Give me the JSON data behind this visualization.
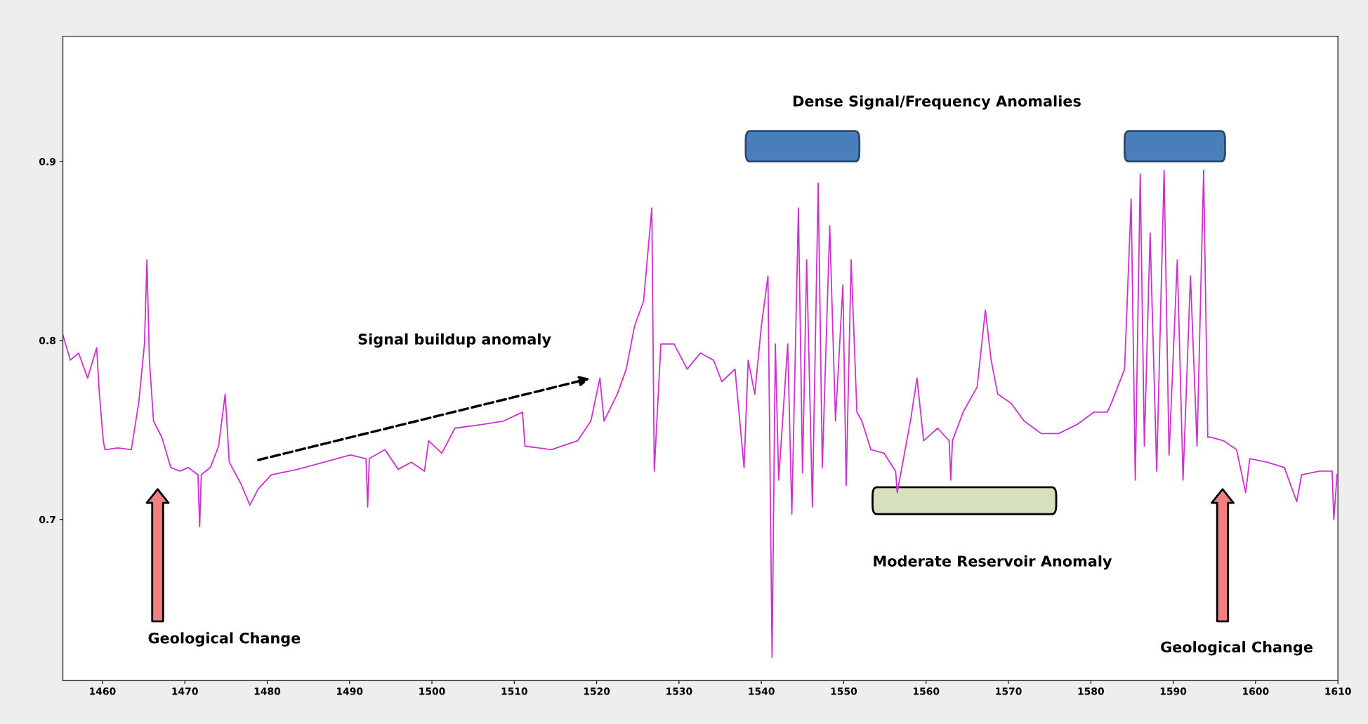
{
  "chart_data": {
    "type": "line",
    "annotations": [
      "Dense Signal/Frequency Anomalies",
      "Signal buildup anomaly",
      "Moderate Reservoir Anomaly",
      "Geological Change",
      "Geological Change"
    ],
    "xlim": [
      1455.2,
      1610
    ],
    "xticks": [
      1460,
      1470,
      1480,
      1490,
      1500,
      1510,
      1520,
      1530,
      1540,
      1550,
      1560,
      1570,
      1580,
      1590,
      1600,
      1610
    ],
    "ylim": [
      0.61,
      0.97
    ],
    "yticks": [
      0.7,
      0.8,
      0.9
    ],
    "grid": false,
    "line_style": "solid",
    "marker": "none",
    "series": [
      {
        "color": "#cc33cc",
        "x": [
          1455.2,
          1456.1,
          1457.1,
          1458.2,
          1459.3,
          1459.6,
          1460.1,
          1460.3,
          1461.9,
          1463.5,
          1464.4,
          1465.1,
          1465.4,
          1465.7,
          1466.2,
          1467.2,
          1468.3,
          1469.4,
          1470.4,
          1471.6,
          1471.8,
          1472.0,
          1473.1,
          1474.1,
          1474.9,
          1475.4,
          1476.8,
          1477.9,
          1478.9,
          1480.5,
          1483.7,
          1486.9,
          1490.1,
          1492.0,
          1492.2,
          1492.4,
          1494.3,
          1495.9,
          1497.5,
          1499.1,
          1499.6,
          1501.2,
          1502.8,
          1506.0,
          1508.7,
          1511.0,
          1511.3,
          1514.5,
          1517.7,
          1519.3,
          1520.4,
          1520.9,
          1522.5,
          1523.6,
          1524.6,
          1525.7,
          1526.7,
          1527.0,
          1527.8,
          1529.4,
          1531.0,
          1532.6,
          1534.2,
          1535.2,
          1536.8,
          1537.9,
          1538.4,
          1539.2,
          1540.0,
          1540.8,
          1541.3,
          1541.7,
          1542.1,
          1543.2,
          1543.7,
          1544.5,
          1545.0,
          1545.5,
          1546.2,
          1546.9,
          1547.4,
          1548.3,
          1549.0,
          1549.9,
          1550.3,
          1550.9,
          1551.6,
          1552.2,
          1553.3,
          1554.9,
          1556.3,
          1556.5,
          1558.1,
          1558.9,
          1559.7,
          1561.4,
          1562.8,
          1563.0,
          1563.2,
          1564.5,
          1566.2,
          1567.2,
          1567.9,
          1568.7,
          1570.3,
          1571.9,
          1574.0,
          1576.1,
          1578.3,
          1580.4,
          1582.0,
          1582.5,
          1584.1,
          1584.9,
          1585.4,
          1586.0,
          1586.5,
          1587.2,
          1588.0,
          1588.9,
          1589.5,
          1590.5,
          1591.2,
          1592.1,
          1592.9,
          1593.7,
          1594.2,
          1594.5,
          1596.1,
          1597.7,
          1598.8,
          1599.3,
          1601.4,
          1603.5,
          1605.0,
          1605.6,
          1607.8,
          1609.3,
          1609.5,
          1609.9
        ],
        "values": [
          0.803,
          0.789,
          0.793,
          0.779,
          0.796,
          0.772,
          0.744,
          0.739,
          0.74,
          0.739,
          0.765,
          0.798,
          0.845,
          0.789,
          0.755,
          0.746,
          0.729,
          0.727,
          0.729,
          0.725,
          0.696,
          0.725,
          0.729,
          0.741,
          0.77,
          0.732,
          0.72,
          0.708,
          0.717,
          0.725,
          0.728,
          0.732,
          0.736,
          0.734,
          0.707,
          0.734,
          0.739,
          0.728,
          0.732,
          0.727,
          0.744,
          0.737,
          0.751,
          0.753,
          0.755,
          0.76,
          0.741,
          0.739,
          0.744,
          0.755,
          0.779,
          0.755,
          0.77,
          0.784,
          0.808,
          0.822,
          0.874,
          0.727,
          0.798,
          0.798,
          0.784,
          0.793,
          0.789,
          0.777,
          0.784,
          0.729,
          0.789,
          0.77,
          0.808,
          0.836,
          0.623,
          0.798,
          0.722,
          0.798,
          0.703,
          0.874,
          0.726,
          0.845,
          0.707,
          0.888,
          0.729,
          0.864,
          0.755,
          0.831,
          0.719,
          0.845,
          0.76,
          0.755,
          0.739,
          0.737,
          0.727,
          0.715,
          0.755,
          0.779,
          0.744,
          0.751,
          0.744,
          0.722,
          0.744,
          0.76,
          0.774,
          0.817,
          0.789,
          0.77,
          0.765,
          0.755,
          0.748,
          0.748,
          0.753,
          0.76,
          0.76,
          0.765,
          0.784,
          0.879,
          0.722,
          0.893,
          0.741,
          0.86,
          0.727,
          0.895,
          0.736,
          0.845,
          0.722,
          0.836,
          0.741,
          0.895,
          0.746,
          0.746,
          0.744,
          0.739,
          0.715,
          0.734,
          0.732,
          0.729,
          0.71,
          0.725,
          0.727,
          0.727,
          0.7,
          0.725
        ]
      }
    ]
  }
}
